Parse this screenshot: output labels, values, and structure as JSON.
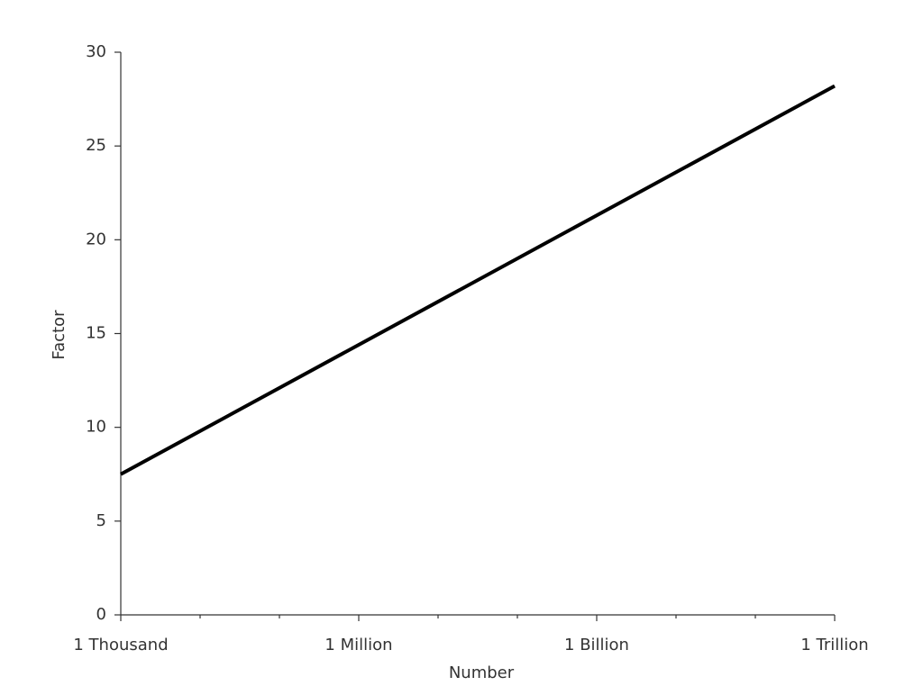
{
  "chart_data": {
    "type": "line",
    "xlabel": "Number",
    "ylabel": "Factor",
    "x": [
      1000,
      1000000,
      1000000000,
      1000000000000
    ],
    "values": [
      7.5,
      14.4,
      21.3,
      28.2
    ],
    "color": "#000000",
    "xscale": "log",
    "xlim": [
      1000,
      1000000000000
    ],
    "xticks": [
      {
        "value": 1000,
        "label": "1 Thousand"
      },
      {
        "value": 1000000,
        "label": "1 Million"
      },
      {
        "value": 1000000000,
        "label": "1 Billion"
      },
      {
        "value": 1000000000000,
        "label": "1 Trillion"
      }
    ],
    "xminorticks": [
      10000,
      100000,
      10000000,
      100000000,
      10000000000,
      100000000000
    ],
    "ylim": [
      0,
      30
    ],
    "yticks": [
      0,
      5,
      10,
      15,
      20,
      25,
      30
    ],
    "grid": false
  }
}
